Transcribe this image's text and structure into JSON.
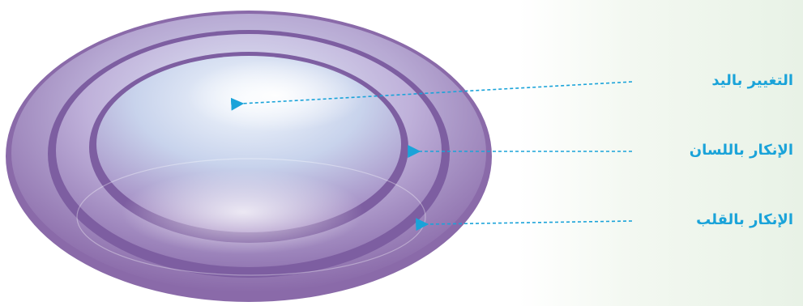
{
  "colors": {
    "label": "#1aa3d9",
    "arrow": "#1aa3d9",
    "disk_outer": "#8c6fad",
    "disk_light": "#d9e6f5",
    "ring_dark": "#7a5a9e",
    "background_right": "#e8f2e6"
  },
  "levels": [
    {
      "label": "التغيير باليد"
    },
    {
      "label": "الإنكار باللسان"
    },
    {
      "label": "الإنكار بالقلب"
    }
  ]
}
